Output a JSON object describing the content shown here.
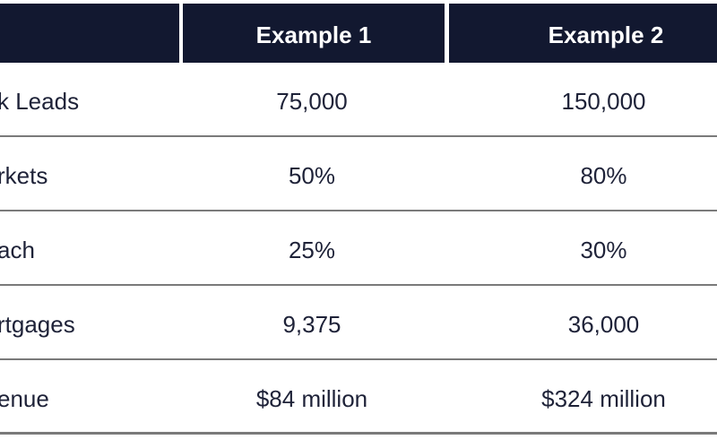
{
  "colors": {
    "background": "#ffffff",
    "header_bg": "#121830",
    "header_text": "#ffffff",
    "body_text": "#1e2238",
    "row_divider": "#7a7a7a"
  },
  "table": {
    "header": {
      "row_label_column": "",
      "columns": [
        "Example 1",
        "Example 2"
      ]
    },
    "rows": [
      {
        "label": "k Leads",
        "example1": "75,000",
        "example2": "150,000"
      },
      {
        "label": "rkets",
        "example1": "50%",
        "example2": "80%"
      },
      {
        "label": "ach",
        "example1": "25%",
        "example2": "30%"
      },
      {
        "label": "rtgages",
        "example1": "9,375",
        "example2": "36,000"
      },
      {
        "label": "enue",
        "example1": "$84 million",
        "example2": "$324 million"
      }
    ]
  },
  "chart_data": {
    "type": "table",
    "title": "",
    "columns": [
      "",
      "Example 1",
      "Example 2"
    ],
    "rows": [
      [
        "k Leads",
        "75,000",
        "150,000"
      ],
      [
        "rkets",
        "50%",
        "80%"
      ],
      [
        "ach",
        "25%",
        "30%"
      ],
      [
        "rtgages",
        "9,375",
        "36,000"
      ],
      [
        "enue",
        "$84 million",
        "$324 million"
      ]
    ],
    "layout_hints": {
      "header_style": "dark navy background, white bold centered text, white gaps between header cells",
      "body_style": "white background, dark navy text, thin gray horizontal rules between rows",
      "crop": "table cropped at left and right edges of screenshot; row labels truncated"
    }
  }
}
